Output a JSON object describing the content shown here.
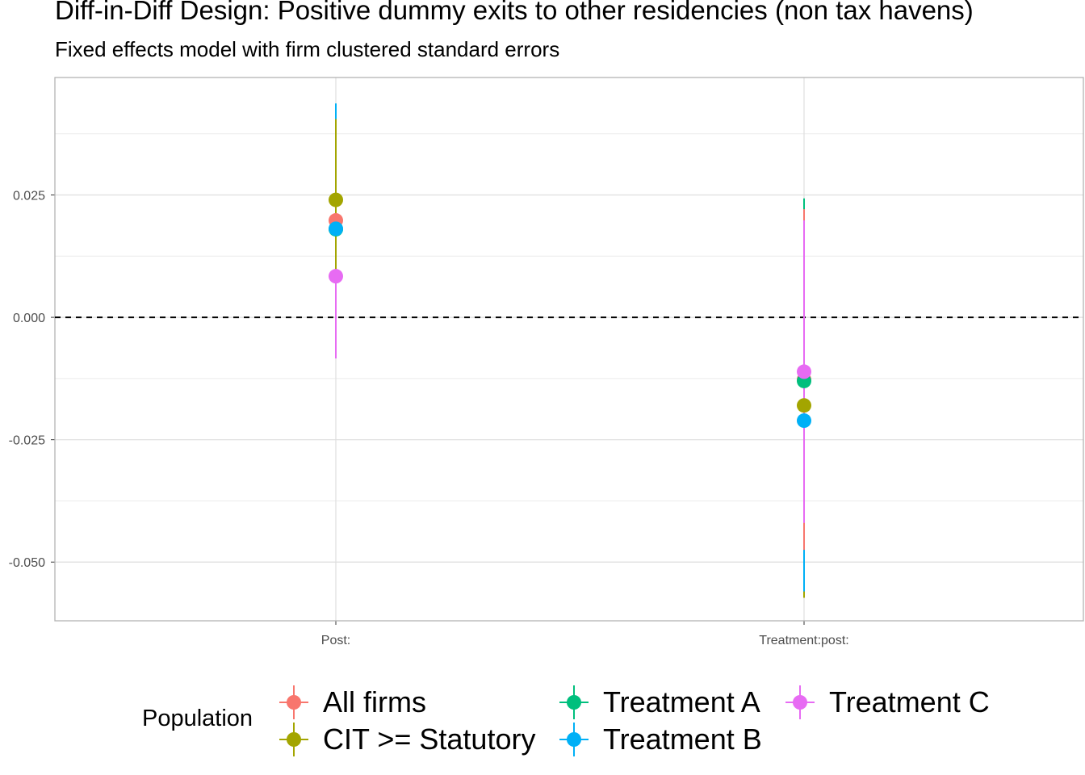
{
  "chart_data": {
    "type": "scatter",
    "title": "Diff-in-Diff Design: Positive dummy exits to other residencies (non tax havens)",
    "subtitle": "Fixed effects model with firm clustered standard errors",
    "xlabel": "",
    "ylabel": "",
    "categories": [
      "Post:",
      "Treatment:post:"
    ],
    "ylim": [
      -0.062,
      0.049
    ],
    "yticks": [
      -0.05,
      -0.025,
      0.0,
      0.025
    ],
    "ytick_labels": [
      "-0.050",
      "-0.025",
      "0.000",
      "0.025"
    ],
    "reference_line": {
      "y": 0.0,
      "style": "dashed"
    },
    "grid": true,
    "legend": {
      "title": "Population",
      "position": "bottom"
    },
    "series": [
      {
        "name": "All firms",
        "color": "#F8766D",
        "values": [
          0.0198,
          -0.0127
        ],
        "lower": [
          0.0004,
          -0.0475
        ],
        "upper": [
          0.0392,
          0.0221
        ]
      },
      {
        "name": "CIT >= Statutory",
        "color": "#A3A500",
        "values": [
          0.024,
          -0.018
        ],
        "lower": [
          0.008,
          -0.0573
        ],
        "upper": [
          0.0405,
          0.0213
        ]
      },
      {
        "name": "Treatment A",
        "color": "#00BF7D",
        "values": [
          0.018,
          -0.013
        ],
        "lower": [
          -0.002,
          -0.05
        ],
        "upper": [
          0.038,
          0.0243
        ]
      },
      {
        "name": "Treatment B",
        "color": "#00B0F6",
        "values": [
          0.0181,
          -0.0211
        ],
        "lower": [
          -0.007,
          -0.056
        ],
        "upper": [
          0.0437,
          0.0138
        ]
      },
      {
        "name": "Treatment C",
        "color": "#E76BF3",
        "values": [
          0.0084,
          -0.0111
        ],
        "lower": [
          -0.0084,
          -0.042
        ],
        "upper": [
          0.0252,
          0.0198
        ]
      }
    ]
  }
}
